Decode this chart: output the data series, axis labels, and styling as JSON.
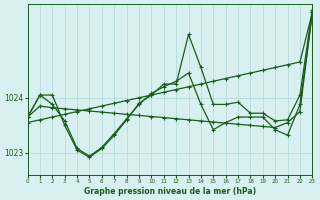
{
  "title": "Graphe pression niveau de la mer (hPa)",
  "bg_color": "#d8f0f0",
  "grid_color": "#b0d8d8",
  "line_color": "#1a5c1a",
  "xlim": [
    0,
    23
  ],
  "ylim": [
    1022.6,
    1025.7
  ],
  "yticks": [
    1023,
    1024
  ],
  "xticks": [
    0,
    1,
    2,
    3,
    4,
    5,
    6,
    7,
    8,
    9,
    10,
    11,
    12,
    13,
    14,
    15,
    16,
    17,
    18,
    19,
    20,
    21,
    22,
    23
  ],
  "series_flat": [
    1023.65,
    1023.85,
    1023.82,
    1023.8,
    1023.78,
    1023.76,
    1023.74,
    1023.72,
    1023.7,
    1023.68,
    1023.66,
    1023.64,
    1023.62,
    1023.6,
    1023.58,
    1023.56,
    1023.54,
    1023.52,
    1023.5,
    1023.48,
    1023.46,
    1023.55,
    1023.75,
    1025.55
  ],
  "series_diag": [
    1023.55,
    1023.6,
    1023.65,
    1023.7,
    1023.75,
    1023.8,
    1023.85,
    1023.9,
    1023.95,
    1024.0,
    1024.05,
    1024.1,
    1024.15,
    1024.2,
    1024.25,
    1024.3,
    1024.35,
    1024.4,
    1024.45,
    1024.5,
    1024.55,
    1024.6,
    1024.65,
    1025.55
  ],
  "series_peak": [
    1023.65,
    1024.05,
    1024.05,
    1023.5,
    1023.05,
    1022.92,
    1023.08,
    1023.32,
    1023.6,
    1023.9,
    1024.05,
    1024.25,
    1024.25,
    1025.15,
    1024.55,
    1023.88,
    1023.88,
    1023.92,
    1023.72,
    1023.72,
    1023.58,
    1023.6,
    1024.05,
    1025.6
  ],
  "series_dip": [
    1023.65,
    1024.05,
    1023.88,
    1023.58,
    1023.08,
    1022.94,
    1023.1,
    1023.35,
    1023.62,
    1023.88,
    1024.08,
    1024.2,
    1024.3,
    1024.45,
    1023.88,
    1023.42,
    1023.55,
    1023.65,
    1023.65,
    1023.65,
    1023.42,
    1023.32,
    1023.88,
    1025.55
  ]
}
